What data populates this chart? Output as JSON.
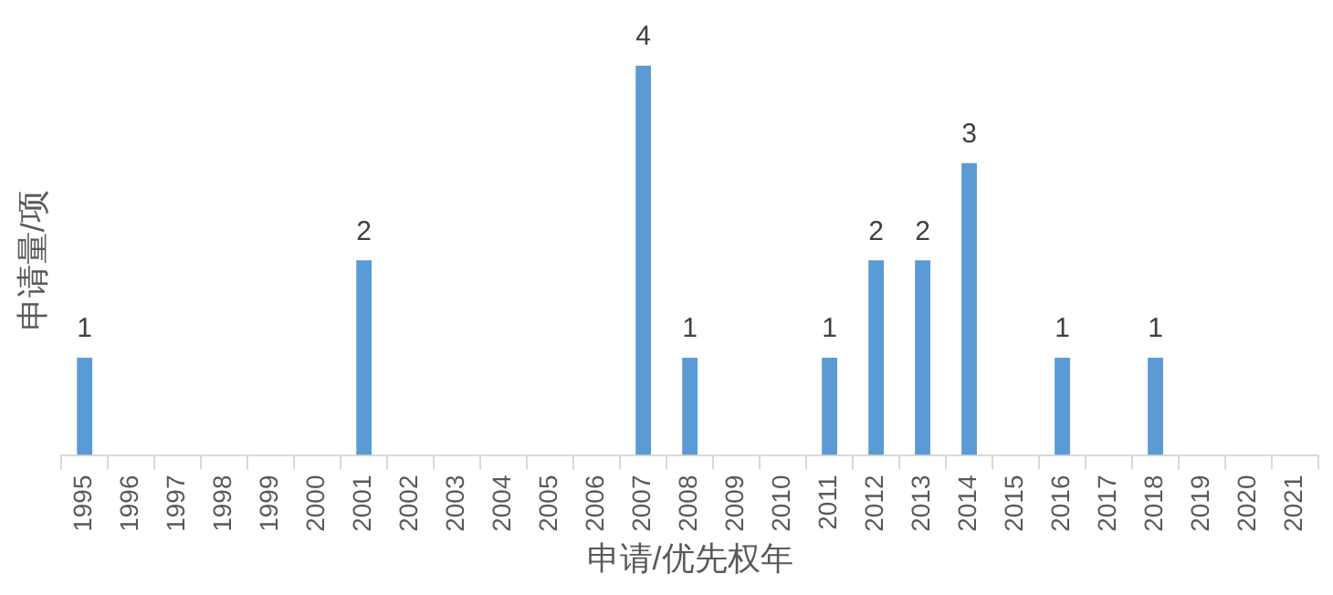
{
  "chart_data": {
    "type": "bar",
    "xlabel": "申请/优先权年",
    "ylabel": "申请量/项",
    "categories": [
      "1995",
      "1996",
      "1997",
      "1998",
      "1999",
      "2000",
      "2001",
      "2002",
      "2003",
      "2004",
      "2005",
      "2006",
      "2007",
      "2008",
      "2009",
      "2010",
      "2011",
      "2012",
      "2013",
      "2014",
      "2015",
      "2016",
      "2017",
      "2018",
      "2019",
      "2020",
      "2021"
    ],
    "values": [
      1,
      0,
      0,
      0,
      0,
      0,
      2,
      0,
      0,
      0,
      0,
      0,
      4,
      1,
      0,
      0,
      1,
      2,
      2,
      3,
      0,
      1,
      0,
      1,
      0,
      0,
      0
    ],
    "value_labels": [
      "1",
      null,
      null,
      null,
      null,
      null,
      "2",
      null,
      null,
      null,
      null,
      null,
      "4",
      "1",
      null,
      null,
      "1",
      "2",
      "2",
      "3",
      null,
      "1",
      null,
      "1",
      null,
      null,
      null
    ],
    "color": "#5b9bd5",
    "grid": false,
    "legend": false
  }
}
